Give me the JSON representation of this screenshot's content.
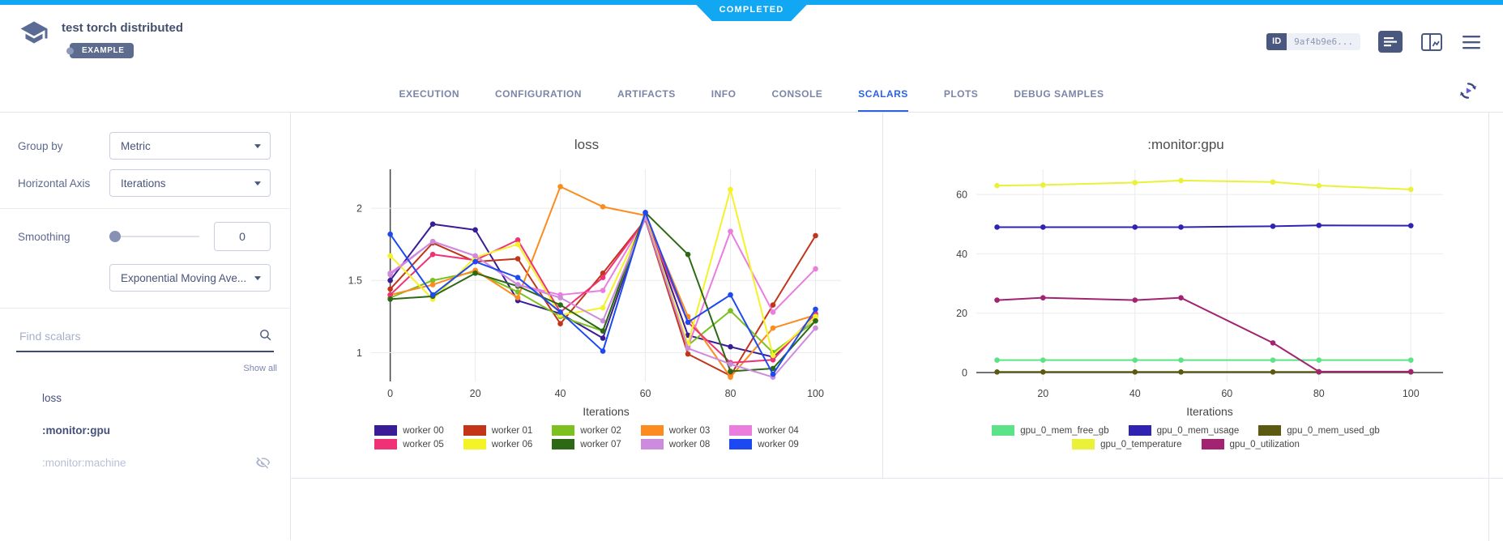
{
  "banner": {
    "label": "COMPLETED"
  },
  "header": {
    "title": "test torch distributed",
    "example_badge": "EXAMPLE",
    "id_badge": {
      "label": "ID",
      "value": "9af4b9e6..."
    },
    "icons": [
      "experiment-logo",
      "details-icon",
      "compare-panel-icon",
      "menu-icon",
      "refresh-icon"
    ]
  },
  "tabs": {
    "items": [
      "EXECUTION",
      "CONFIGURATION",
      "ARTIFACTS",
      "INFO",
      "CONSOLE",
      "SCALARS",
      "PLOTS",
      "DEBUG SAMPLES"
    ],
    "active": "SCALARS"
  },
  "sidebar": {
    "group_by": {
      "label": "Group by",
      "value": "Metric"
    },
    "horizontal_axis": {
      "label": "Horizontal Axis",
      "value": "Iterations"
    },
    "smoothing": {
      "label": "Smoothing",
      "value": "0",
      "method": "Exponential Moving Ave..."
    },
    "search": {
      "placeholder": "Find scalars",
      "icon": "search-icon"
    },
    "show_all": "Show all",
    "metrics": [
      {
        "label": "loss",
        "hidden": false,
        "bold": false
      },
      {
        "label": ":monitor:gpu",
        "hidden": false,
        "bold": true
      },
      {
        "label": ":monitor:machine",
        "hidden": true,
        "bold": false,
        "icon": "eye-off-icon"
      }
    ]
  },
  "colors": {
    "accent_blue": "#12a7f2",
    "tab_active_blue": "#2b63e0",
    "slate": "#4a5880",
    "grid": "#ebebeb",
    "axis_dark": "#444444"
  },
  "chart_data": [
    {
      "type": "line",
      "title": "loss",
      "xlabel": "Iterations",
      "grid": true,
      "legend_position": "bottom",
      "x": [
        0,
        10,
        20,
        30,
        40,
        50,
        60,
        70,
        80,
        90,
        100
      ],
      "xticks": [
        0,
        20,
        40,
        60,
        80,
        100
      ],
      "yticks": [
        1,
        1.5,
        2
      ],
      "xlim": [
        -4.5,
        106
      ],
      "ylim": [
        0.8,
        2.27
      ],
      "series": [
        {
          "name": "worker 00",
          "color": "#3a1d96",
          "values": [
            1.5,
            1.89,
            1.85,
            1.36,
            1.27,
            1.1,
            1.95,
            1.12,
            1.04,
            0.97,
            1.25
          ]
        },
        {
          "name": "worker 01",
          "color": "#c23519",
          "values": [
            1.44,
            1.76,
            1.63,
            1.65,
            1.2,
            1.55,
            1.92,
            0.99,
            0.84,
            1.33,
            1.81
          ]
        },
        {
          "name": "worker 02",
          "color": "#7cc11f",
          "values": [
            1.38,
            1.5,
            1.56,
            1.42,
            1.25,
            1.15,
            1.95,
            1.05,
            1.29,
            1.0,
            1.22
          ]
        },
        {
          "name": "worker 03",
          "color": "#fc8b20",
          "values": [
            1.4,
            1.47,
            1.57,
            1.38,
            2.15,
            2.01,
            1.95,
            1.25,
            0.83,
            1.17,
            1.26
          ]
        },
        {
          "name": "worker 04",
          "color": "#ea7ddd",
          "values": [
            1.55,
            1.77,
            1.67,
            1.47,
            1.4,
            1.43,
            1.93,
            1.04,
            1.84,
            1.28,
            1.58
          ]
        },
        {
          "name": "worker 05",
          "color": "#ef3276",
          "values": [
            1.4,
            1.68,
            1.64,
            1.78,
            1.28,
            1.52,
            1.92,
            1.21,
            0.93,
            0.95,
            1.27
          ]
        },
        {
          "name": "worker 06",
          "color": "#f4f328",
          "values": [
            1.67,
            1.37,
            1.66,
            1.75,
            1.26,
            1.31,
            1.94,
            1.06,
            2.13,
            0.98,
            1.25
          ]
        },
        {
          "name": "worker 07",
          "color": "#2d6915",
          "values": [
            1.37,
            1.39,
            1.55,
            1.46,
            1.33,
            1.15,
            1.97,
            1.68,
            0.87,
            0.89,
            1.22
          ]
        },
        {
          "name": "worker 08",
          "color": "#cd8bdd",
          "values": [
            1.54,
            1.77,
            1.67,
            1.47,
            1.38,
            1.22,
            1.93,
            1.03,
            0.92,
            0.83,
            1.17
          ]
        },
        {
          "name": "worker 09",
          "color": "#1c49f0",
          "values": [
            1.82,
            1.4,
            1.63,
            1.52,
            1.28,
            1.01,
            1.97,
            1.21,
            1.4,
            0.85,
            1.3
          ]
        }
      ]
    },
    {
      "type": "line",
      "title": ":monitor:gpu",
      "xlabel": "Iterations",
      "grid": true,
      "legend_position": "bottom",
      "x": [
        10,
        20,
        40,
        50,
        70,
        80,
        100
      ],
      "xticks": [
        20,
        40,
        60,
        80,
        100
      ],
      "yticks": [
        0,
        20,
        40,
        60
      ],
      "xlim": [
        5.5,
        107
      ],
      "ylim": [
        -3,
        68.5
      ],
      "series": [
        {
          "name": "gpu_0_mem_free_gb",
          "color": "#5ce287",
          "values": [
            4.2,
            4.2,
            4.2,
            4.2,
            4.2,
            4.2,
            4.2
          ]
        },
        {
          "name": "gpu_0_mem_usage",
          "color": "#3023b1",
          "values": [
            49,
            49,
            49,
            49,
            49.3,
            49.6,
            49.5
          ]
        },
        {
          "name": "gpu_0_mem_used_gb",
          "color": "#5c5a11",
          "values": [
            0.2,
            0.2,
            0.2,
            0.2,
            0.2,
            0.2,
            0.2
          ]
        },
        {
          "name": "gpu_0_temperature",
          "color": "#e9f138",
          "values": [
            63,
            63.2,
            64,
            64.7,
            64.2,
            63,
            61.7
          ]
        },
        {
          "name": "gpu_0_utilization",
          "color": "#a22371",
          "values": [
            24.4,
            25.2,
            24.4,
            25.2,
            10,
            0.3,
            0.3
          ]
        }
      ]
    }
  ]
}
